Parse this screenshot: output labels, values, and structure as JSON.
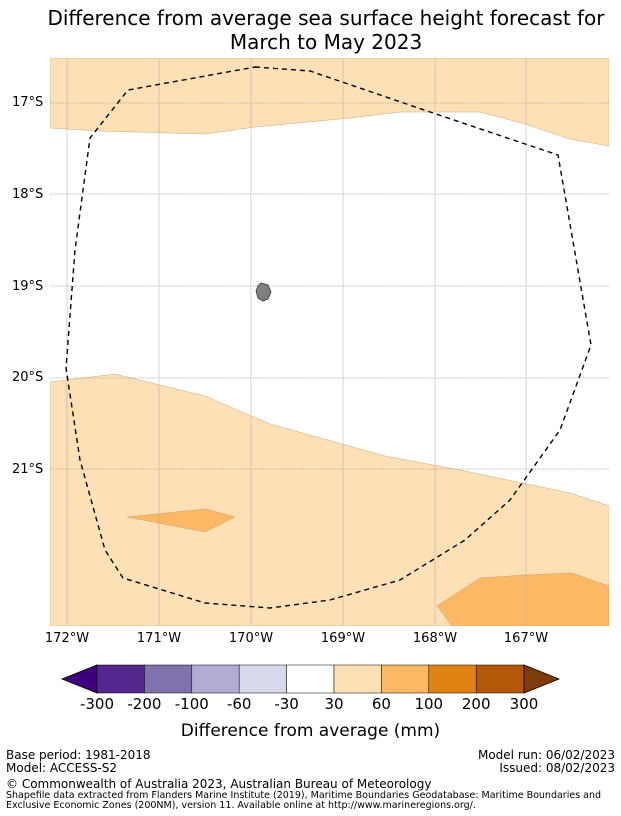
{
  "title_line1": "Difference from average sea surface height forecast for",
  "title_line2": "March to May 2023",
  "latitude_labels": [
    "17°S",
    "18°S",
    "19°S",
    "20°S",
    "21°S"
  ],
  "longitude_labels": [
    "172°W",
    "171°W",
    "170°W",
    "169°W",
    "168°W",
    "167°W"
  ],
  "colorbar": {
    "title": "Difference from average (mm)",
    "tick_labels": [
      "-300",
      "-200",
      "-100",
      "-60",
      "-30",
      "30",
      "60",
      "100",
      "200",
      "300"
    ],
    "colors": [
      "#3f007d",
      "#54278f",
      "#8073ac",
      "#b2abd2",
      "#d8daeb",
      "#ffffff",
      "#fee0b6",
      "#fdb863",
      "#e08214",
      "#b35806",
      "#7f3b08"
    ]
  },
  "colors": {
    "band_30_60": "#fee0b6",
    "band_60_100": "#fdb863",
    "land": "#808080",
    "eez_line": "#000000"
  },
  "footer": {
    "base_period": "Base period: 1981-2018",
    "model": "Model: ACCESS-S2",
    "model_run": "Model run: 06/02/2023",
    "issued": "Issued: 08/02/2023",
    "copyright": "© Commonwealth of Australia 2023, Australian Bureau of Meteorology",
    "shapefile_line1": "Shapefile data extracted from Flanders Marine Institute (2019), Maritime Boundaries Geodatabase: Maritime Boundaries and",
    "shapefile_line2": "Exclusive Economic Zones (200NM), version 11. Available online at http://www.marineregions.org/."
  }
}
